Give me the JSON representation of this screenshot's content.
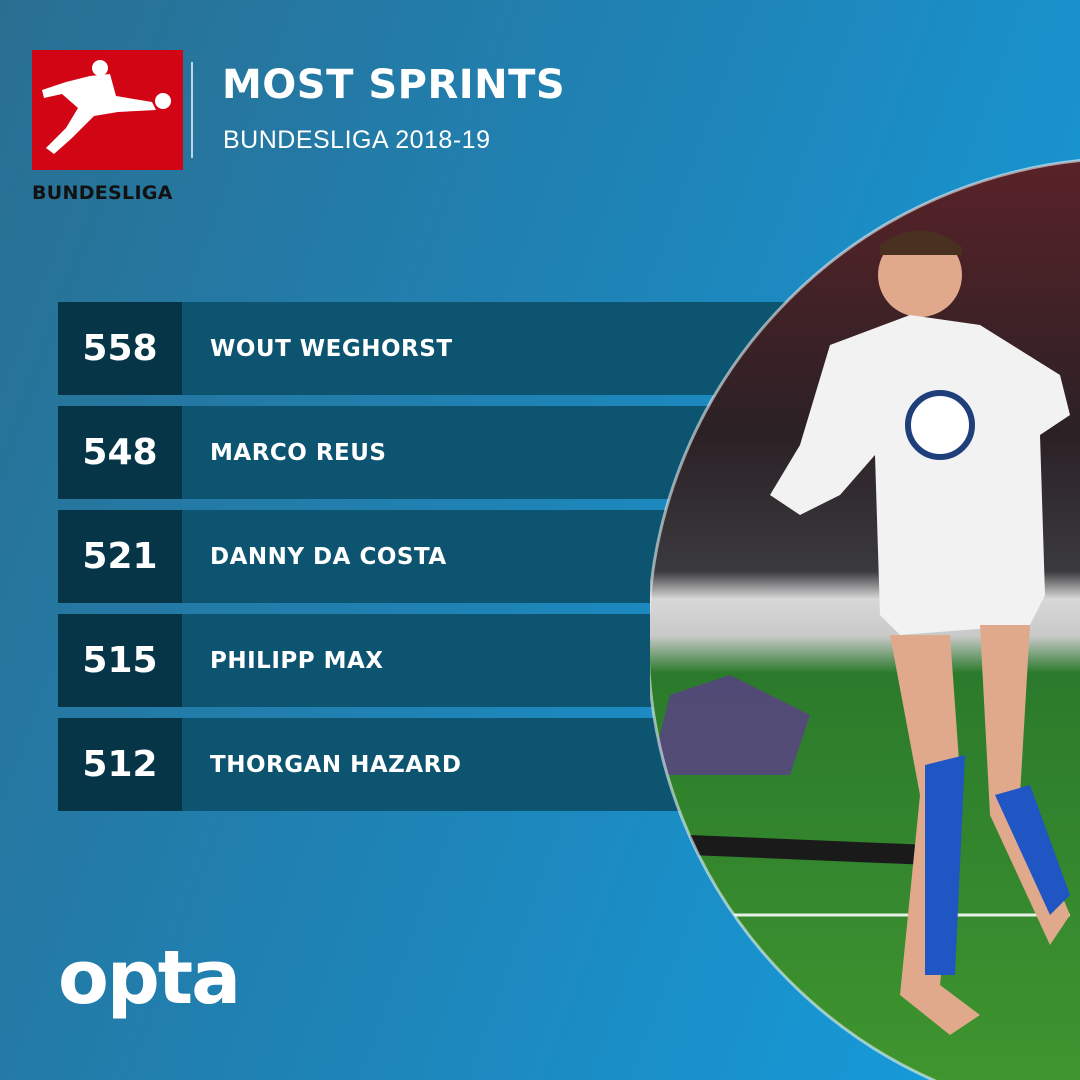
{
  "header": {
    "title": "MOST SPRINTS",
    "subtitle": "BUNDESLIGA 2018-19",
    "logo_text": "BUNDESLIGA"
  },
  "rankings": [
    {
      "value": "558",
      "player": "WOUT WEGHORST"
    },
    {
      "value": "548",
      "player": "MARCO REUS"
    },
    {
      "value": "521",
      "player": "DANNY DA COSTA"
    },
    {
      "value": "515",
      "player": "PHILIPP MAX"
    },
    {
      "value": "512",
      "player": "THORGAN HAZARD"
    }
  ],
  "footer": {
    "brand": "opta"
  },
  "colors": {
    "brand_red": "#d20515",
    "row_bg": "#0c5470",
    "number_bg": "#053547",
    "background": "#1f82b4"
  }
}
